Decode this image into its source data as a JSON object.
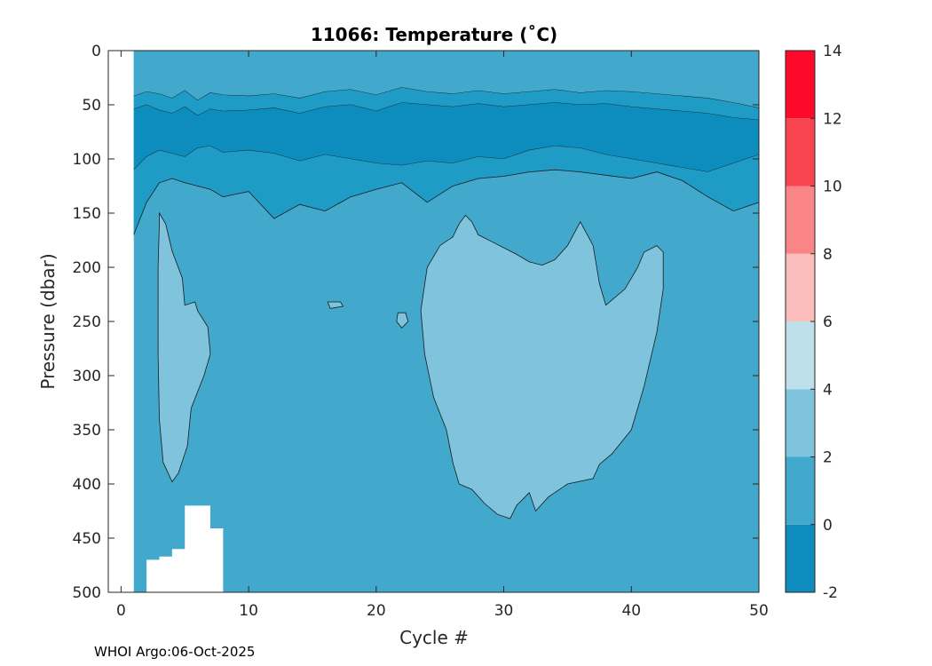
{
  "chart_data": {
    "type": "heatmap",
    "title": "11066:  Temperature (˚C)",
    "xlabel": "Cycle #",
    "ylabel": "Pressure (dbar)",
    "xlim": [
      -1,
      50
    ],
    "ylim": [
      0,
      500
    ],
    "y_reversed": true,
    "x_ticks": [
      0,
      10,
      20,
      30,
      40,
      50
    ],
    "x_tick_labels": [
      "0",
      "10",
      "20",
      "30",
      "40",
      "50"
    ],
    "y_ticks": [
      0,
      50,
      100,
      150,
      200,
      250,
      300,
      350,
      400,
      450,
      500
    ],
    "y_tick_labels": [
      "0",
      "50",
      "100",
      "150",
      "200",
      "250",
      "300",
      "350",
      "400",
      "450",
      "500"
    ],
    "data_x_start": 1,
    "background_level_color": "#42a9cc",
    "contour_bands": [
      {
        "name": "upper-warm-band",
        "color": "#42a9cc",
        "x": [
          1,
          2,
          3,
          4,
          5,
          6,
          7,
          8,
          10,
          12,
          14,
          16,
          18,
          20,
          22,
          24,
          26,
          28,
          30,
          32,
          34,
          36,
          38,
          40,
          42,
          44,
          46,
          48,
          50
        ],
        "y_top": [
          0,
          0,
          0,
          0,
          0,
          0,
          0,
          0,
          0,
          0,
          0,
          0,
          0,
          0,
          0,
          0,
          0,
          0,
          0,
          0,
          0,
          0,
          0,
          0,
          0,
          0,
          0,
          0,
          0
        ],
        "y_bottom": [
          42,
          38,
          40,
          44,
          37,
          46,
          39,
          41,
          42,
          40,
          44,
          38,
          36,
          41,
          34,
          38,
          40,
          37,
          40,
          38,
          36,
          39,
          37,
          38,
          40,
          42,
          44,
          48,
          53
        ]
      },
      {
        "name": "cold-layer-mid",
        "color": "#1f9cc6",
        "x": [
          1,
          2,
          3,
          4,
          5,
          6,
          7,
          8,
          10,
          12,
          14,
          16,
          18,
          20,
          22,
          24,
          26,
          28,
          30,
          32,
          34,
          36,
          38,
          40,
          42,
          44,
          46,
          48,
          50
        ],
        "y_top": [
          42,
          38,
          40,
          44,
          37,
          46,
          39,
          41,
          42,
          40,
          44,
          38,
          36,
          41,
          34,
          38,
          40,
          37,
          40,
          38,
          36,
          39,
          37,
          38,
          40,
          42,
          44,
          48,
          53
        ],
        "y_bottom": [
          54,
          50,
          55,
          58,
          52,
          60,
          54,
          56,
          55,
          53,
          58,
          52,
          50,
          56,
          48,
          50,
          52,
          49,
          52,
          50,
          48,
          50,
          49,
          52,
          54,
          56,
          58,
          62,
          64
        ]
      },
      {
        "name": "coldest-core",
        "color": "#0c8dbd",
        "x": [
          1,
          2,
          3,
          4,
          5,
          6,
          7,
          8,
          10,
          12,
          14,
          16,
          18,
          20,
          22,
          24,
          26,
          28,
          30,
          32,
          34,
          36,
          38,
          40,
          42,
          44,
          46,
          48,
          50
        ],
        "y_top": [
          54,
          50,
          55,
          58,
          52,
          60,
          54,
          56,
          55,
          53,
          58,
          52,
          50,
          56,
          48,
          50,
          52,
          49,
          52,
          50,
          48,
          50,
          49,
          52,
          54,
          56,
          58,
          62,
          64
        ],
        "y_bottom": [
          110,
          98,
          92,
          95,
          98,
          90,
          88,
          94,
          92,
          95,
          102,
          96,
          100,
          104,
          106,
          102,
          104,
          98,
          100,
          92,
          88,
          90,
          96,
          100,
          104,
          108,
          112,
          104,
          96
        ]
      },
      {
        "name": "lower-transition",
        "color": "#1f9cc6",
        "x": [
          1,
          2,
          3,
          4,
          5,
          6,
          7,
          8,
          10,
          12,
          14,
          16,
          18,
          20,
          22,
          24,
          26,
          28,
          30,
          32,
          34,
          36,
          38,
          40,
          42,
          44,
          46,
          48,
          50
        ],
        "y_top": [
          110,
          98,
          92,
          95,
          98,
          90,
          88,
          94,
          92,
          95,
          102,
          96,
          100,
          104,
          106,
          102,
          104,
          98,
          100,
          92,
          88,
          90,
          96,
          100,
          104,
          108,
          112,
          104,
          96
        ],
        "y_bottom": [
          170,
          140,
          122,
          118,
          122,
          125,
          128,
          135,
          130,
          155,
          142,
          148,
          135,
          128,
          122,
          140,
          125,
          118,
          116,
          112,
          110,
          112,
          115,
          118,
          112,
          120,
          135,
          148,
          140
        ]
      }
    ],
    "warm_patches": [
      {
        "name": "warm-patch-left",
        "color": "#7fc3dd",
        "level": "2-4",
        "points": [
          [
            3.0,
            150
          ],
          [
            3.5,
            160
          ],
          [
            4.0,
            185
          ],
          [
            4.8,
            210
          ],
          [
            5.0,
            235
          ],
          [
            5.8,
            232
          ],
          [
            6.0,
            240
          ],
          [
            6.8,
            255
          ],
          [
            7.0,
            280
          ],
          [
            6.5,
            300
          ],
          [
            5.5,
            330
          ],
          [
            5.2,
            365
          ],
          [
            4.5,
            390
          ],
          [
            4.0,
            398
          ],
          [
            3.3,
            380
          ],
          [
            3.0,
            340
          ],
          [
            2.9,
            280
          ],
          [
            2.9,
            200
          ],
          [
            3.0,
            160
          ]
        ]
      },
      {
        "name": "warm-patch-center",
        "color": "#7fc3dd",
        "level": "2-4",
        "points": [
          [
            26.5,
            160
          ],
          [
            27.0,
            152
          ],
          [
            27.5,
            158
          ],
          [
            28.0,
            170
          ],
          [
            29.0,
            176
          ],
          [
            30.0,
            182
          ],
          [
            31.0,
            188
          ],
          [
            32.0,
            195
          ],
          [
            33.0,
            198
          ],
          [
            34.0,
            193
          ],
          [
            35.0,
            180
          ],
          [
            36.0,
            158
          ],
          [
            37.0,
            180
          ],
          [
            37.5,
            215
          ],
          [
            38.0,
            235
          ],
          [
            39.5,
            220
          ],
          [
            40.5,
            200
          ],
          [
            41.0,
            186
          ],
          [
            42.0,
            180
          ],
          [
            42.5,
            186
          ],
          [
            42.5,
            220
          ],
          [
            42.0,
            260
          ],
          [
            41.0,
            310
          ],
          [
            40.0,
            350
          ],
          [
            38.5,
            372
          ],
          [
            37.5,
            382
          ],
          [
            37.0,
            395
          ],
          [
            35.0,
            400
          ],
          [
            33.5,
            412
          ],
          [
            32.5,
            425
          ],
          [
            32.0,
            408
          ],
          [
            31.0,
            420
          ],
          [
            30.5,
            432
          ],
          [
            29.5,
            428
          ],
          [
            28.5,
            418
          ],
          [
            27.5,
            405
          ],
          [
            26.5,
            400
          ],
          [
            26.0,
            380
          ],
          [
            25.5,
            350
          ],
          [
            24.5,
            320
          ],
          [
            23.8,
            280
          ],
          [
            23.5,
            240
          ],
          [
            24.0,
            200
          ],
          [
            25.0,
            180
          ],
          [
            26.0,
            172
          ]
        ]
      },
      {
        "name": "warm-spot-1",
        "color": "#7fc3dd",
        "level": "2-4",
        "points": [
          [
            21.7,
            242
          ],
          [
            22.3,
            242
          ],
          [
            22.5,
            250
          ],
          [
            22.0,
            256
          ],
          [
            21.6,
            250
          ]
        ]
      },
      {
        "name": "warm-spot-2",
        "color": "#7fc3dd",
        "level": "2-4",
        "points": [
          [
            16.2,
            232
          ],
          [
            17.2,
            232
          ],
          [
            17.4,
            236
          ],
          [
            16.4,
            238
          ]
        ]
      }
    ],
    "colorbar": {
      "levels": [
        -2,
        0,
        2,
        4,
        6,
        8,
        10,
        12,
        14
      ],
      "tick_labels": [
        "-2",
        "0",
        "2",
        "4",
        "6",
        "8",
        "10",
        "12",
        "14"
      ],
      "colors": [
        "#0c8dbd",
        "#42a9cc",
        "#7fc3dd",
        "#bde0eb",
        "#fbbdbc",
        "#f98586",
        "#f8444f",
        "#fd0a2b"
      ]
    },
    "missing_data_color": "#ffffff"
  },
  "footer": {
    "text": "WHOI Argo:06-Oct-2025"
  }
}
